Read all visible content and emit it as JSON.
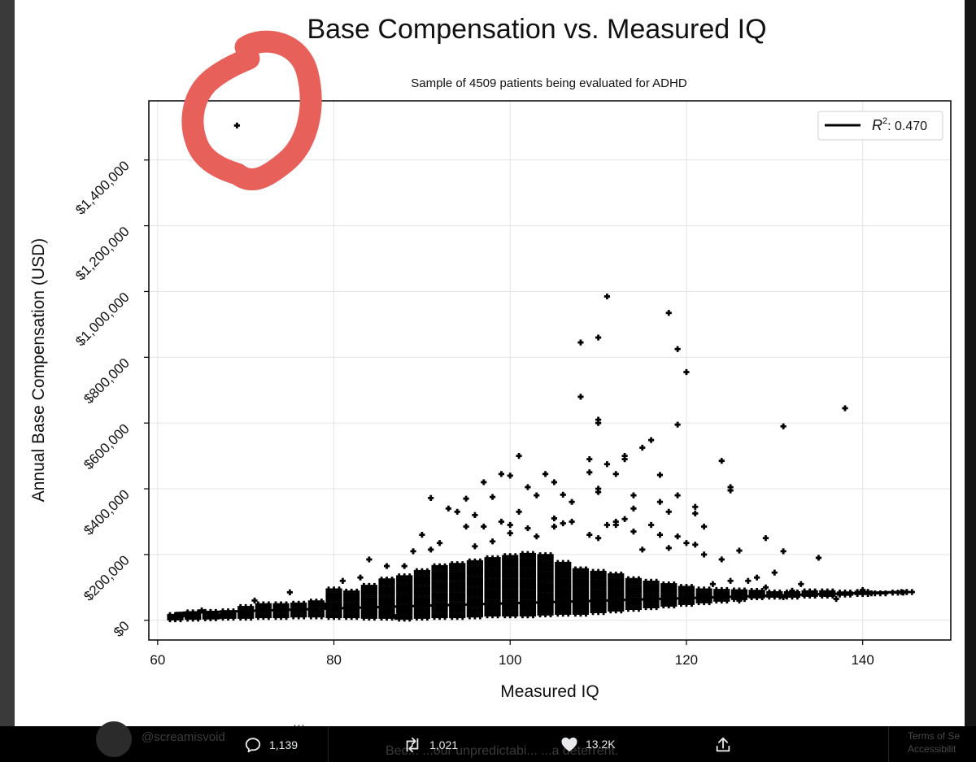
{
  "chart_data": {
    "type": "scatter",
    "title": "Base Compensation vs. Measured IQ",
    "subtitle": "Sample of 4509 patients being evaluated for ADHD",
    "xlabel": "Measured IQ",
    "ylabel": "Annual Base Compensation (USD)",
    "xlim": [
      59,
      150
    ],
    "ylim": [
      -60000,
      1580000
    ],
    "x_ticks": [
      60,
      80,
      100,
      120,
      140
    ],
    "y_ticks": [
      0,
      200000,
      400000,
      600000,
      800000,
      1000000,
      1200000,
      1400000
    ],
    "y_tick_labels": [
      "$0",
      "$200,000",
      "$400,000",
      "$600,000",
      "$800,000",
      "$1,000,000",
      "$1,200,000",
      "$1,400,000"
    ],
    "grid": true,
    "legend": {
      "position": "top-right",
      "label_prefix": "R",
      "label_exponent": "2",
      "label_value": ": 0.470"
    },
    "regression_line": {
      "x": [
        62,
        145
      ],
      "y": [
        22000,
        87000
      ]
    },
    "dense_band": [
      [
        62,
        3000,
        22000
      ],
      [
        64,
        5000,
        26000
      ],
      [
        66,
        6000,
        30000
      ],
      [
        68,
        8000,
        33000
      ],
      [
        70,
        8000,
        45000
      ],
      [
        72,
        10000,
        50000
      ],
      [
        74,
        10000,
        55000
      ],
      [
        76,
        12000,
        52000
      ],
      [
        78,
        12000,
        60000
      ],
      [
        80,
        10000,
        95000
      ],
      [
        82,
        10000,
        90000
      ],
      [
        84,
        8000,
        110000
      ],
      [
        86,
        8000,
        125000
      ],
      [
        88,
        5000,
        140000
      ],
      [
        90,
        8000,
        155000
      ],
      [
        92,
        10000,
        170000
      ],
      [
        94,
        10000,
        175000
      ],
      [
        96,
        12000,
        185000
      ],
      [
        98,
        15000,
        190000
      ],
      [
        100,
        15000,
        200000
      ],
      [
        102,
        15000,
        205000
      ],
      [
        104,
        18000,
        200000
      ],
      [
        106,
        20000,
        180000
      ],
      [
        108,
        20000,
        160000
      ],
      [
        110,
        25000,
        150000
      ],
      [
        112,
        30000,
        140000
      ],
      [
        114,
        35000,
        130000
      ],
      [
        116,
        40000,
        120000
      ],
      [
        118,
        45000,
        110000
      ],
      [
        120,
        50000,
        105000
      ],
      [
        122,
        55000,
        100000
      ],
      [
        124,
        60000,
        95000
      ],
      [
        126,
        65000,
        95000
      ],
      [
        128,
        70000,
        92000
      ],
      [
        130,
        72000,
        88000
      ],
      [
        132,
        72000,
        88000
      ],
      [
        134,
        75000,
        90000
      ],
      [
        136,
        75000,
        90000
      ],
      [
        138,
        78000,
        88000
      ],
      [
        140,
        80000,
        88000
      ],
      [
        142,
        82000,
        88000
      ],
      [
        144,
        84000,
        90000
      ],
      [
        145,
        86000,
        88000
      ]
    ],
    "points": [
      [
        69,
        1505000
      ],
      [
        111,
        985000
      ],
      [
        118,
        935000
      ],
      [
        108,
        845000
      ],
      [
        110,
        860000
      ],
      [
        119,
        825000
      ],
      [
        120,
        755000
      ],
      [
        108,
        680000
      ],
      [
        110,
        610000
      ],
      [
        110,
        600000
      ],
      [
        119,
        595000
      ],
      [
        131,
        590000
      ],
      [
        138,
        645000
      ],
      [
        116,
        548000
      ],
      [
        115,
        525000
      ],
      [
        113,
        500000
      ],
      [
        113,
        490000
      ],
      [
        109,
        490000
      ],
      [
        111,
        475000
      ],
      [
        101,
        500000
      ],
      [
        97,
        420000
      ],
      [
        99,
        445000
      ],
      [
        100,
        440000
      ],
      [
        104,
        445000
      ],
      [
        105,
        420000
      ],
      [
        109,
        450000
      ],
      [
        112,
        445000
      ],
      [
        117,
        442000
      ],
      [
        124,
        485000
      ],
      [
        125,
        405000
      ],
      [
        125,
        395000
      ],
      [
        91,
        372000
      ],
      [
        95,
        370000
      ],
      [
        98,
        375000
      ],
      [
        102,
        405000
      ],
      [
        103,
        380000
      ],
      [
        106,
        382000
      ],
      [
        107,
        360000
      ],
      [
        110,
        400000
      ],
      [
        110,
        390000
      ],
      [
        114,
        380000
      ],
      [
        119,
        380000
      ],
      [
        114,
        340000
      ],
      [
        117,
        360000
      ],
      [
        118,
        330000
      ],
      [
        121,
        345000
      ],
      [
        121,
        325000
      ],
      [
        122,
        285000
      ],
      [
        113,
        308000
      ],
      [
        112,
        300000
      ],
      [
        93,
        340000
      ],
      [
        94,
        330000
      ],
      [
        96,
        320000
      ],
      [
        99,
        300000
      ],
      [
        101,
        330000
      ],
      [
        105,
        310000
      ],
      [
        106,
        295000
      ],
      [
        107,
        300000
      ],
      [
        105,
        285000
      ],
      [
        112,
        290000
      ],
      [
        116,
        290000
      ],
      [
        109,
        260000
      ],
      [
        110,
        250000
      ],
      [
        111,
        290000
      ],
      [
        114,
        270000
      ],
      [
        117,
        260000
      ],
      [
        119,
        255000
      ],
      [
        120,
        235000
      ],
      [
        121,
        230000
      ],
      [
        115,
        215000
      ],
      [
        118,
        220000
      ],
      [
        122,
        200000
      ],
      [
        124,
        185000
      ],
      [
        126,
        212000
      ],
      [
        129,
        250000
      ],
      [
        131,
        210000
      ],
      [
        130,
        145000
      ],
      [
        128,
        130000
      ],
      [
        127,
        120000
      ],
      [
        135,
        190000
      ],
      [
        90,
        260000
      ],
      [
        92,
        235000
      ],
      [
        91,
        215000
      ],
      [
        89,
        210000
      ],
      [
        84,
        185000
      ],
      [
        86,
        165000
      ],
      [
        88,
        165000
      ],
      [
        96,
        225000
      ],
      [
        98,
        240000
      ],
      [
        100,
        265000
      ],
      [
        103,
        255000
      ],
      [
        97,
        285000
      ],
      [
        100,
        290000
      ],
      [
        102,
        280000
      ],
      [
        95,
        285000
      ],
      [
        133,
        110000
      ],
      [
        134,
        80000
      ],
      [
        136,
        75000
      ],
      [
        137,
        65000
      ],
      [
        140,
        92000
      ],
      [
        141,
        82000
      ],
      [
        145,
        86000
      ],
      [
        132,
        90000
      ],
      [
        131,
        70000
      ],
      [
        125,
        120000
      ],
      [
        123,
        110000
      ],
      [
        62,
        10000
      ],
      [
        63,
        18000
      ],
      [
        65,
        30000
      ],
      [
        67,
        12000
      ],
      [
        71,
        60000
      ],
      [
        75,
        85000
      ],
      [
        79,
        45000
      ],
      [
        81,
        120000
      ],
      [
        83,
        130000
      ],
      [
        87,
        10000
      ],
      [
        126,
        60000
      ],
      [
        128,
        72000
      ],
      [
        129,
        100000
      ]
    ]
  },
  "tweet": {
    "handle": "@screamisvoid",
    "more": "···",
    "text": "Bec...   ...our unpredictabi...   ...a deterrent.",
    "footer_line1": "Terms of Se",
    "footer_line2": "Accessibilit",
    "reply_count": "1,139",
    "retweet_count": "1,021",
    "like_count": "13.2K"
  },
  "colors": {
    "marker": "#000000",
    "grid": "#e4e4e4",
    "annotation": "#e8605a",
    "icon": "#e7e9ea"
  }
}
